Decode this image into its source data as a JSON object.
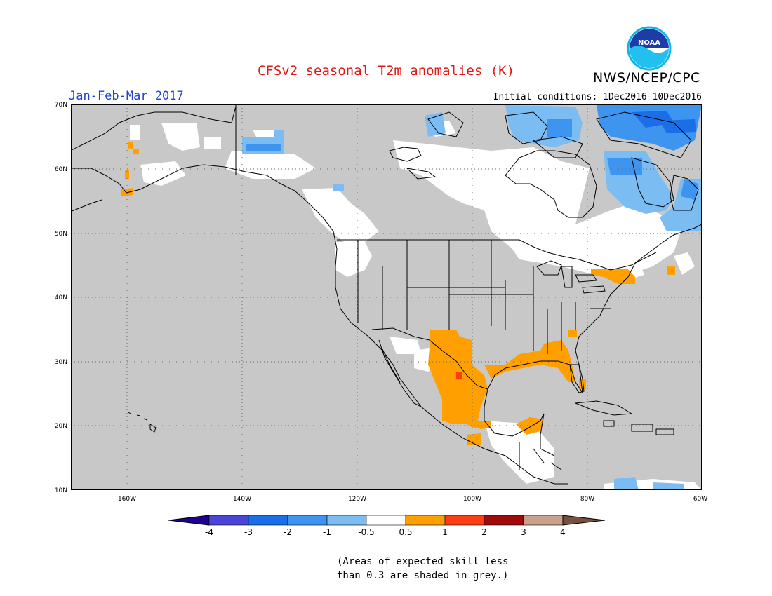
{
  "header": {
    "title": "CFSv2 seasonal T2m anomalies (K)",
    "org": "NWS/NCEP/CPC",
    "logo_text": "NOAA",
    "period": "Jan-Feb-Mar 2017",
    "initial_conditions": "Initial conditions: 1Dec2016-10Dec2016"
  },
  "map": {
    "projection": "lat-lon",
    "lon_range": [
      -172,
      -60
    ],
    "lat_range": [
      10,
      70
    ],
    "lat_ticks": [
      "10N",
      "20N",
      "30N",
      "40N",
      "50N",
      "60N",
      "70N"
    ],
    "lon_ticks": [
      "160W",
      "140W",
      "120W",
      "100W",
      "80W",
      "60W"
    ],
    "grid": "dotted",
    "land_color": "#c8c8c8",
    "ocean_color": "#c8c8c8"
  },
  "colorbar": {
    "labels": [
      "-4",
      "-3",
      "-2",
      "-1",
      "-0.5",
      "0.5",
      "1",
      "2",
      "3",
      "4"
    ],
    "colors": [
      "#1e0096",
      "#4a44d8",
      "#1a6ee8",
      "#3e95f0",
      "#7bbcf2",
      "#ffffff",
      "#ffa000",
      "#ff3c14",
      "#a00a0a",
      "#c8a08c",
      "#78503c"
    ]
  },
  "note": {
    "line1": "(Areas of expected skill less",
    "line2": "than 0.3 are shaded in grey.)"
  }
}
